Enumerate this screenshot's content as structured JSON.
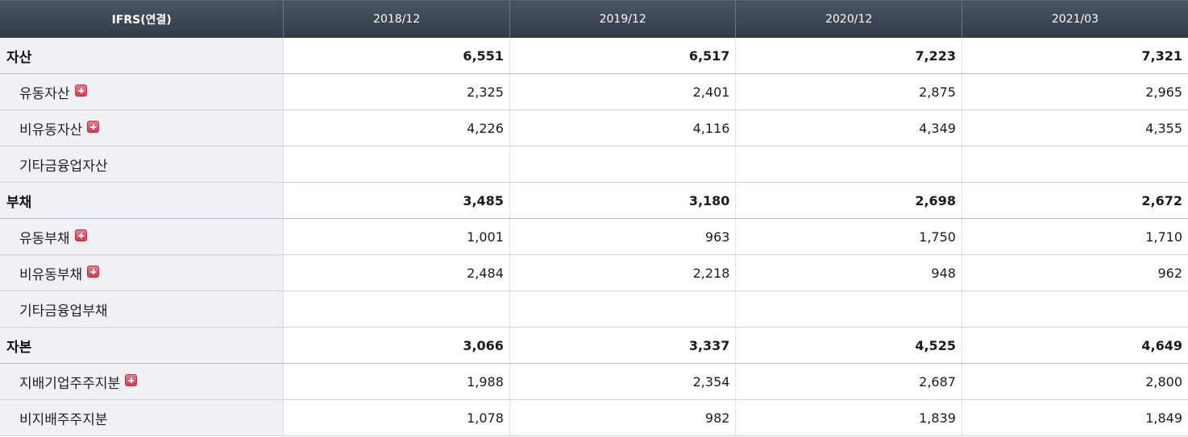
{
  "header": {
    "corner_label": "IFRS(연결)",
    "periods": [
      "2018/12",
      "2019/12",
      "2020/12",
      "2021/03"
    ]
  },
  "rows": [
    {
      "label": "자산",
      "level": "main",
      "expandable": false,
      "values": [
        "6,551",
        "6,517",
        "7,223",
        "7,321"
      ]
    },
    {
      "label": "유동자산",
      "level": "sub",
      "expandable": true,
      "values": [
        "2,325",
        "2,401",
        "2,875",
        "2,965"
      ]
    },
    {
      "label": "비유동자산",
      "level": "sub",
      "expandable": true,
      "values": [
        "4,226",
        "4,116",
        "4,349",
        "4,355"
      ]
    },
    {
      "label": "기타금융업자산",
      "level": "sub",
      "expandable": false,
      "values": [
        "",
        "",
        "",
        ""
      ]
    },
    {
      "label": "부채",
      "level": "main",
      "expandable": false,
      "values": [
        "3,485",
        "3,180",
        "2,698",
        "2,672"
      ]
    },
    {
      "label": "유동부채",
      "level": "sub",
      "expandable": true,
      "values": [
        "1,001",
        "963",
        "1,750",
        "1,710"
      ]
    },
    {
      "label": "비유동부채",
      "level": "sub",
      "expandable": true,
      "values": [
        "2,484",
        "2,218",
        "948",
        "962"
      ]
    },
    {
      "label": "기타금융업부채",
      "level": "sub",
      "expandable": false,
      "values": [
        "",
        "",
        "",
        ""
      ]
    },
    {
      "label": "자본",
      "level": "main",
      "expandable": false,
      "values": [
        "3,066",
        "3,337",
        "4,525",
        "4,649"
      ]
    },
    {
      "label": "지배기업주주지분",
      "level": "sub",
      "expandable": true,
      "values": [
        "1,988",
        "2,354",
        "2,687",
        "2,800"
      ]
    },
    {
      "label": "비지배주주지분",
      "level": "sub",
      "expandable": false,
      "values": [
        "1,078",
        "982",
        "1,839",
        "1,849"
      ]
    }
  ],
  "colors": {
    "header_bg": "#3a4452",
    "label_bg": "#f0f1f5",
    "expand_icon": "#d8394f"
  },
  "icons": {
    "expand": "plus-square-icon"
  }
}
